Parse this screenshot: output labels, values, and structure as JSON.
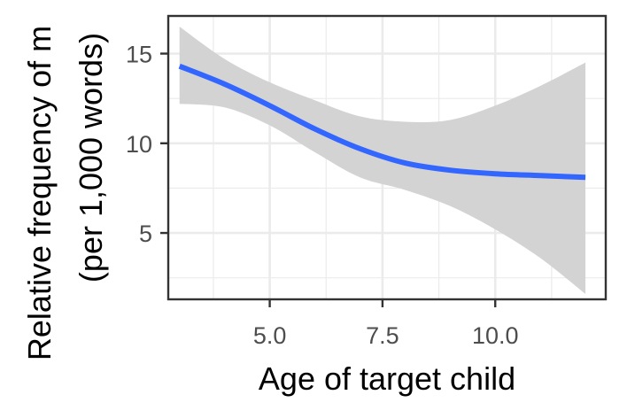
{
  "chart_data": {
    "type": "line",
    "title": "",
    "xlabel": "Age of target child",
    "ylabel_lines": [
      "Relative frequency of m",
      "(per 1,000 words)"
    ],
    "xlim": [
      2.75,
      12.45
    ],
    "ylim": [
      1.3,
      17.1
    ],
    "x_ticks": [
      5.0,
      7.5,
      10.0
    ],
    "x_tick_labels": [
      "5.0",
      "7.5",
      "10.0"
    ],
    "y_ticks": [
      5,
      10,
      15
    ],
    "y_tick_labels": [
      "5",
      "10",
      "15"
    ],
    "grid": true,
    "legend": "none",
    "colors": {
      "line": "#3366ff",
      "ribbon": "#d3d3d3",
      "grid": "#ebebeb",
      "panel_border": "#333333"
    },
    "series": [
      {
        "x": [
          3.0,
          4.0,
          5.0,
          6.0,
          7.0,
          8.0,
          9.0,
          10.0,
          11.0,
          12.0
        ],
        "y": [
          14.3,
          13.3,
          12.1,
          10.8,
          9.7,
          8.9,
          8.5,
          8.3,
          8.2,
          8.1
        ],
        "ymin": [
          12.2,
          12.0,
          11.0,
          9.5,
          8.1,
          7.4,
          6.5,
          5.2,
          3.6,
          1.6
        ],
        "ymax": [
          16.5,
          14.7,
          13.4,
          12.4,
          11.5,
          11.2,
          11.3,
          12.1,
          13.2,
          14.5
        ]
      }
    ]
  }
}
